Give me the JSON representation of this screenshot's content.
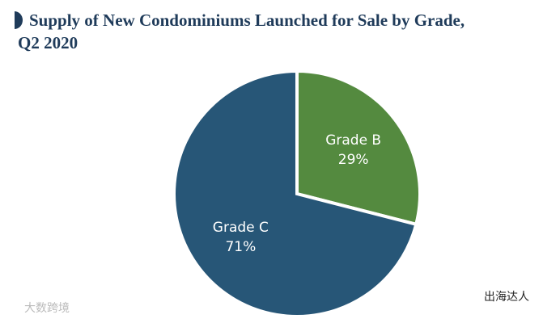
{
  "chart_data": {
    "type": "pie",
    "title": "Supply of New Condominiums Launched for Sale by Grade,",
    "subtitle": "Q2 2020",
    "categories": [
      "Grade B",
      "Grade C"
    ],
    "values": [
      29,
      71
    ],
    "value_labels": [
      "29%",
      "71%"
    ],
    "colors": [
      "#548a3f",
      "#275677"
    ]
  },
  "watermarks": [
    "大数跨境",
    "出海达人"
  ]
}
